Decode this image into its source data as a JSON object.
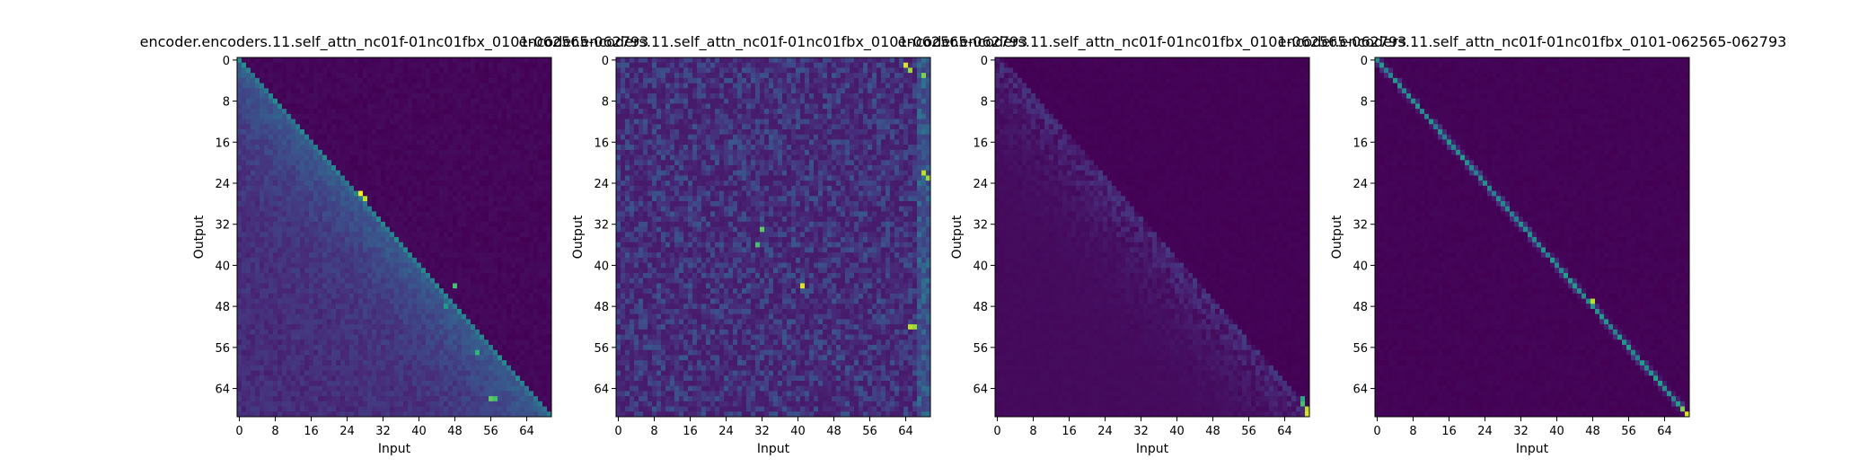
{
  "figure": {
    "panels": [
      {
        "title": "encoder.encoders.11.self_attn_nc01f-01nc01fbx_0101-062565-062793",
        "xlabel": "Input",
        "ylabel": "Output"
      },
      {
        "title": "encoder.encoders.11.self_attn_nc01f-01nc01fbx_0101-062565-062793",
        "xlabel": "Input",
        "ylabel": "Output"
      },
      {
        "title": "encoder.encoders.11.self_attn_nc01f-01nc01fbx_0101-062565-062793",
        "xlabel": "Input",
        "ylabel": "Output"
      },
      {
        "title": "encoder.encoders.11.self_attn_nc01f-01nc01fbx_0101-062565-062793",
        "xlabel": "Input",
        "ylabel": "Output"
      }
    ]
  },
  "chart_data": [
    {
      "type": "heatmap",
      "title": "encoder.encoders.11.self_attn_nc01f-01nc01fbx_0101-062565-062793",
      "xlabel": "Input",
      "ylabel": "Output",
      "size": 70,
      "xticks": [
        "0",
        "8",
        "16",
        "24",
        "32",
        "40",
        "48",
        "56",
        "64"
      ],
      "yticks": [
        "0",
        "8",
        "16",
        "24",
        "32",
        "40",
        "48",
        "56",
        "64"
      ],
      "colormap": "viridis",
      "pattern": "lower-triangular",
      "hotspots": [
        [
          26,
          27,
          1.0
        ],
        [
          27,
          28,
          0.9
        ],
        [
          44,
          48,
          0.7
        ],
        [
          57,
          53,
          0.65
        ],
        [
          66,
          56,
          0.75
        ],
        [
          66,
          57,
          0.7
        ],
        [
          48,
          46,
          0.55
        ]
      ]
    },
    {
      "type": "heatmap",
      "title": "encoder.encoders.11.self_attn_nc01f-01nc01fbx_0101-062565-062793",
      "xlabel": "Input",
      "ylabel": "Output",
      "size": 70,
      "xticks": [
        "0",
        "8",
        "16",
        "24",
        "32",
        "40",
        "48",
        "56",
        "64"
      ],
      "yticks": [
        "0",
        "8",
        "16",
        "24",
        "32",
        "40",
        "48",
        "56",
        "64"
      ],
      "colormap": "viridis",
      "pattern": "diffuse",
      "hotspots": [
        [
          1,
          64,
          0.95
        ],
        [
          2,
          65,
          0.85
        ],
        [
          3,
          68,
          0.8
        ],
        [
          22,
          68,
          0.9
        ],
        [
          23,
          69,
          0.85
        ],
        [
          44,
          41,
          0.95
        ],
        [
          52,
          65,
          0.9
        ],
        [
          52,
          66,
          0.85
        ],
        [
          33,
          32,
          0.75
        ],
        [
          36,
          31,
          0.7
        ]
      ]
    },
    {
      "type": "heatmap",
      "title": "encoder.encoders.11.self_attn_nc01f-01nc01fbx_0101-062565-062793",
      "xlabel": "Input",
      "ylabel": "Output",
      "size": 70,
      "xticks": [
        "0",
        "8",
        "16",
        "24",
        "32",
        "40",
        "48",
        "56",
        "64"
      ],
      "yticks": [
        "0",
        "8",
        "16",
        "24",
        "32",
        "40",
        "48",
        "56",
        "64"
      ],
      "colormap": "viridis",
      "pattern": "lower-diffuse",
      "hotspots": [
        [
          68,
          69,
          0.9
        ],
        [
          69,
          69,
          0.95
        ],
        [
          67,
          68,
          0.7
        ],
        [
          66,
          68,
          0.6
        ]
      ]
    },
    {
      "type": "heatmap",
      "title": "encoder.encoders.11.self_attn_nc01f-01nc01fbx_0101-062565-062793",
      "xlabel": "Input",
      "ylabel": "Output",
      "size": 70,
      "xticks": [
        "0",
        "8",
        "16",
        "24",
        "32",
        "40",
        "48",
        "56",
        "64"
      ],
      "yticks": [
        "0",
        "8",
        "16",
        "24",
        "32",
        "40",
        "48",
        "56",
        "64"
      ],
      "colormap": "viridis",
      "pattern": "diagonal",
      "hotspots": [
        [
          47,
          48,
          0.9
        ],
        [
          69,
          69,
          0.95
        ],
        [
          68,
          68,
          0.8
        ]
      ]
    }
  ]
}
